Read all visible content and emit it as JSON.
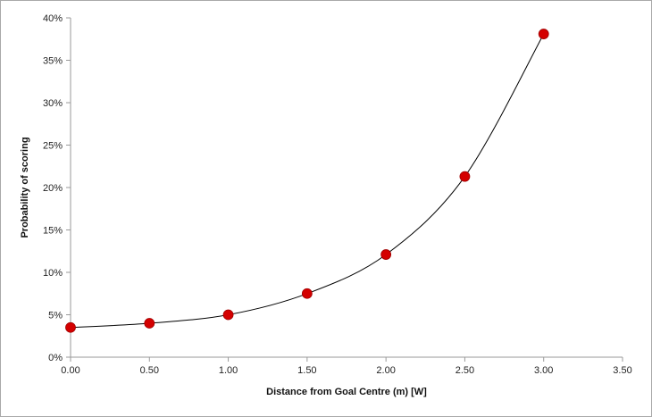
{
  "chart_data": {
    "type": "scatter",
    "title": "",
    "xlabel": "Distance from Goal Centre (m) [W]",
    "ylabel": "Probability of scoring",
    "xlim": [
      0,
      3.5
    ],
    "ylim": [
      0,
      0.4
    ],
    "x_ticks": [
      "0.00",
      "0.50",
      "1.00",
      "1.50",
      "2.00",
      "2.50",
      "3.00",
      "3.50"
    ],
    "y_ticks": [
      "0%",
      "5%",
      "10%",
      "15%",
      "20%",
      "25%",
      "30%",
      "35%",
      "40%"
    ],
    "grid": false,
    "legend": "none",
    "marker_color": "#d40000",
    "trendline": "smooth curve",
    "trendline_color": "#000000",
    "series": [
      {
        "x": [
          0.0,
          0.5,
          1.0,
          1.5,
          2.0,
          2.5,
          3.0
        ],
        "y": [
          0.035,
          0.04,
          0.05,
          0.075,
          0.121,
          0.213,
          0.381
        ]
      }
    ]
  }
}
